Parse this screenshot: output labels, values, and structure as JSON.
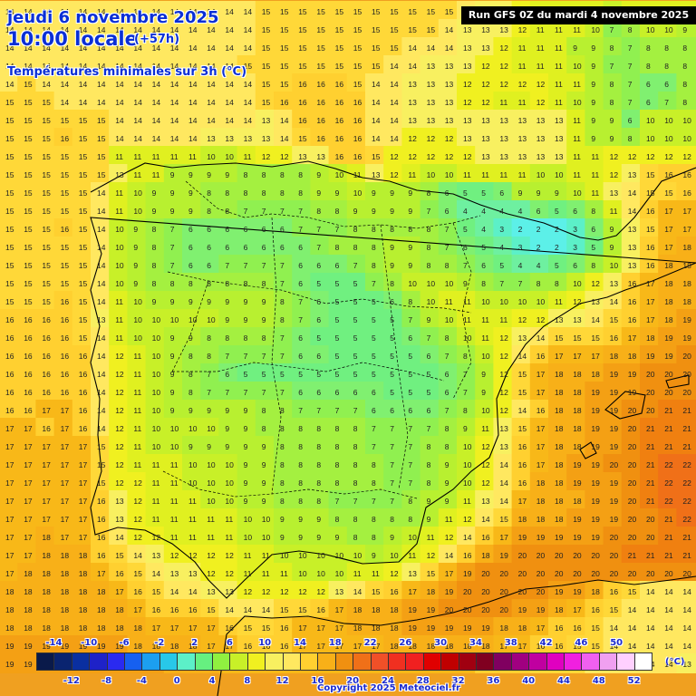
{
  "header": {
    "date": "jeudi 6 novembre 2025",
    "time": "10:00 locale",
    "offset": "(+57h)",
    "subtitle": "Températures minimales sur 3h (°C)",
    "run": "Run GFS 0Z du mardi 4 novembre 2025"
  },
  "legend": {
    "unit": "(°C)",
    "top_labels": [
      "-14",
      "-10",
      "-6",
      "-2",
      "2",
      "6",
      "10",
      "14",
      "18",
      "22",
      "26",
      "30",
      "34",
      "38",
      "42",
      "46",
      "50"
    ],
    "bottom_labels": [
      "-12",
      "-8",
      "-4",
      "0",
      "4",
      "8",
      "12",
      "16",
      "20",
      "24",
      "28",
      "32",
      "36",
      "40",
      "44",
      "48",
      "52"
    ],
    "colors": [
      "#0a1a4a",
      "#0a2470",
      "#0a2fa0",
      "#1e22c8",
      "#2a2af0",
      "#1660f0",
      "#1c9ff0",
      "#28c8e8",
      "#5cf0c8",
      "#66f080",
      "#90f040",
      "#c8f028",
      "#f0f020",
      "#f8f060",
      "#ffe860",
      "#ffd030",
      "#f8b018",
      "#f09010",
      "#f07018",
      "#f05028",
      "#f03020",
      "#f02020",
      "#e00000",
      "#c00000",
      "#a00010",
      "#800020",
      "#800060",
      "#a00080",
      "#c000a0",
      "#e000c0",
      "#f020e0",
      "#f060f0",
      "#f0a0f0",
      "#ffd0ff",
      "#ffffff"
    ]
  },
  "copyright": "Copyright 2025 Meteociel.fr",
  "map": {
    "region": "Péninsule ibérique",
    "grid_cols": 38,
    "grid_rows": 37,
    "temperature_rows": [
      "14 14 14 14 14 14 14 14 14 14 14 14 14 14 15 15 15 15 15 15 15 15 15 15 15 14 13 13 12 11 11 11 11 10 11 11 11 11",
      "14 14 14 14 14 14 14 14 14 14 14 14 14 14 15 15 15 15 15 15 15 15 15 15 14 13 13 13 12 11 11 11 10 7 8 10 10 9",
      "14 14 14 14 14 14 14 14 14 14 14 14 14 14 15 15 15 15 15 15 15 15 14 14 14 13 13 12 11 11 11 9 9 8 7 8 8 8",
      "14 14 14 14 14 14 14 14 14 14 14 14 14 15 15 15 15 15 15 15 15 14 14 13 13 13 12 12 11 11 11 10 9 7 7 8 8 8",
      "14 15 14 14 14 14 14 14 14 14 14 14 14 14 15 15 16 16 16 15 14 14 13 13 13 12 12 12 12 12 11 11 9 8 7 6 6 8",
      "15 15 15 14 14 14 14 14 14 14 14 14 14 14 15 16 16 16 16 16 14 14 13 13 13 12 12 11 11 12 11 10 9 8 7 6 7 8",
      "15 15 15 15 15 15 14 14 14 14 14 14 14 14 13 14 16 16 16 16 14 14 13 13 13 13 13 13 13 13 13 11 9 9 6 10 10 10",
      "15 15 15 16 15 15 14 14 14 14 14 13 13 13 13 14 15 16 16 16 14 14 12 12 12 13 13 13 13 13 13 11 9 9 8 10 10 10",
      "15 15 15 15 15 15 11 11 11 11 11 10 10 11 12 12 13 13 16 16 15 12 12 12 12 12 13 13 13 13 13 11 11 12 12 12 12 12",
      "15 15 15 15 15 15 13 11 11 9 9 9 9 8 8 8 8 9 10 11 13 12 11 10 10 11 11 11 11 10 10 11 11 12 13 15 16 16",
      "15 15 15 15 15 14 11 10 9 9 9 8 8 8 8 8 8 9 9 10 9 9 9 8 6 5 5 6 9 9 9 10 11 13 14 15 15 16",
      "15 15 15 15 15 14 11 10 9 9 9 8 8 7 7 7 7 8 8 9 9 9 9 7 6 4 4 4 4 6 5 6 8 11 14 16 17 17",
      "15 15 15 16 15 14 10 9 8 7 6 6 6 6 6 6 7 7 7 8 8 8 8 8 7 5 4 3 2 2 2 3 6 9 13 15 17 17",
      "15 15 15 15 15 14 10 9 8 7 6 6 6 6 6 6 6 7 8 8 8 9 9 8 7 6 5 4 3 2 2 3 5 9 13 16 17 18",
      "15 15 15 15 15 14 10 9 8 7 6 6 7 7 7 7 6 6 6 7 8 9 9 8 8 7 6 5 4 4 5 6 8 10 13 16 18 18",
      "15 15 15 15 15 14 10 9 8 8 8 8 8 8 8 7 6 5 5 5 7 8 10 10 10 9 8 7 7 8 8 10 12 13 16 17 18 18",
      "15 15 15 16 15 14 11 10 9 9 9 9 9 9 9 8 7 6 5 5 5 6 8 10 11 11 10 10 10 10 11 12 13 14 16 17 18 18",
      "16 16 16 16 15 13 11 10 10 10 10 10 9 9 9 8 7 6 5 5 5 5 7 9 10 11 11 11 12 12 13 13 14 15 16 17 18 19",
      "16 16 16 16 15 14 11 10 10 9 9 8 8 8 8 7 6 5 5 5 5 5 6 7 8 10 11 12 13 14 15 15 15 16 17 18 19 19",
      "16 16 16 16 16 14 12 11 10 9 8 8 7 7 7 7 6 6 5 5 5 5 5 6 7 8 10 12 14 16 17 17 17 18 18 19 19 20",
      "16 16 16 16 16 14 12 11 10 9 8 7 6 5 5 5 5 5 5 5 5 5 5 5 6 7 9 12 15 17 18 18 18 19 19 20 20 20",
      "16 16 16 16 16 14 12 11 10 9 8 7 7 7 7 7 6 6 6 6 6 5 5 5 6 7 9 12 15 17 18 18 19 19 19 20 20 20",
      "16 16 17 17 16 14 12 11 10 9 9 9 9 9 8 8 7 7 7 7 6 6 6 6 7 8 10 12 14 16 18 18 19 19 20 20 21 21",
      "17 17 16 17 16 14 12 11 10 10 10 10 9 9 8 8 8 8 8 8 7 7 7 7 8 9 11 13 15 17 18 18 19 19 20 21 21 21",
      "17 17 17 17 17 15 12 11 10 10 9 9 9 9 9 8 8 8 8 8 7 7 7 8 8 10 12 13 16 17 18 18 19 19 20 21 21 21",
      "17 17 17 17 17 15 12 11 11 11 10 10 10 9 9 8 8 8 8 8 8 7 7 8 9 10 12 14 16 17 18 19 19 20 20 21 22 22",
      "17 17 17 17 17 15 12 12 11 11 10 10 10 9 9 8 8 8 8 8 8 7 7 8 9 10 12 14 16 18 18 19 19 19 20 21 22 22",
      "17 17 17 17 17 16 13 12 11 11 11 10 10 9 9 8 8 8 7 7 7 7 8 9 9 11 13 14 17 18 18 18 19 19 20 21 22 22",
      "17 17 17 17 17 16 13 12 11 11 11 11 11 10 10 9 9 9 8 8 8 8 8 9 11 12 14 15 18 18 18 19 19 19 20 20 21 22",
      "17 17 18 17 17 16 14 12 12 11 11 11 11 10 10 9 9 9 9 8 8 9 10 11 12 14 16 17 19 19 19 19 19 20 20 20 21 21",
      "17 17 18 18 18 16 15 14 13 12 12 12 12 11 11 10 10 10 10 10 9 10 11 12 14 16 18 19 20 20 20 20 20 20 21 21 21 21",
      "17 18 18 18 18 17 16 15 14 13 13 12 12 11 11 11 10 10 10 11 11 12 13 15 17 19 20 20 20 20 20 20 20 20 20 20 20 20",
      "18 18 18 18 18 18 17 16 15 14 14 13 13 12 12 12 12 12 13 14 15 16 17 18 19 20 20 20 20 20 19 19 18 16 15 14 14 14",
      "18 18 18 18 18 18 18 17 16 16 16 15 14 14 14 15 15 16 17 18 18 18 19 19 20 20 20 20 19 19 18 17 16 15 14 14 14 14",
      "18 18 18 18 18 18 18 18 17 17 17 17 16 15 15 16 17 17 17 18 18 18 19 19 19 19 19 18 18 17 16 16 15 14 14 14 14 14",
      "19 19 19 19 19 19 19 18 18 18 18 17 17 16 16 16 17 17 17 17 17 18 18 18 18 18 18 17 17 16 16 15 15 14 14 14 14 14",
      "19 19 19 19 19 19 19 19 19 18 18 18 17 17 17 17 17 17 17 17 17 17 17 17 17 17 16 16 16 15 15 15 14 14 14 14 14 13"
    ],
    "temperature_colors": {
      "2": "#5cf0e8",
      "3": "#5cf0c8",
      "4": "#6ef0a0",
      "5": "#70f080",
      "6": "#80f070",
      "7": "#90f050",
      "8": "#a4f040",
      "9": "#b8f030",
      "10": "#c8f028",
      "11": "#e0f020",
      "12": "#f0f020",
      "13": "#f8f060",
      "14": "#ffe860",
      "15": "#ffd838",
      "16": "#ffd030",
      "17": "#f8b818",
      "18": "#f8b018",
      "19": "#f4a014",
      "20": "#f09010",
      "21": "#f08010",
      "22": "#f07018"
    }
  }
}
